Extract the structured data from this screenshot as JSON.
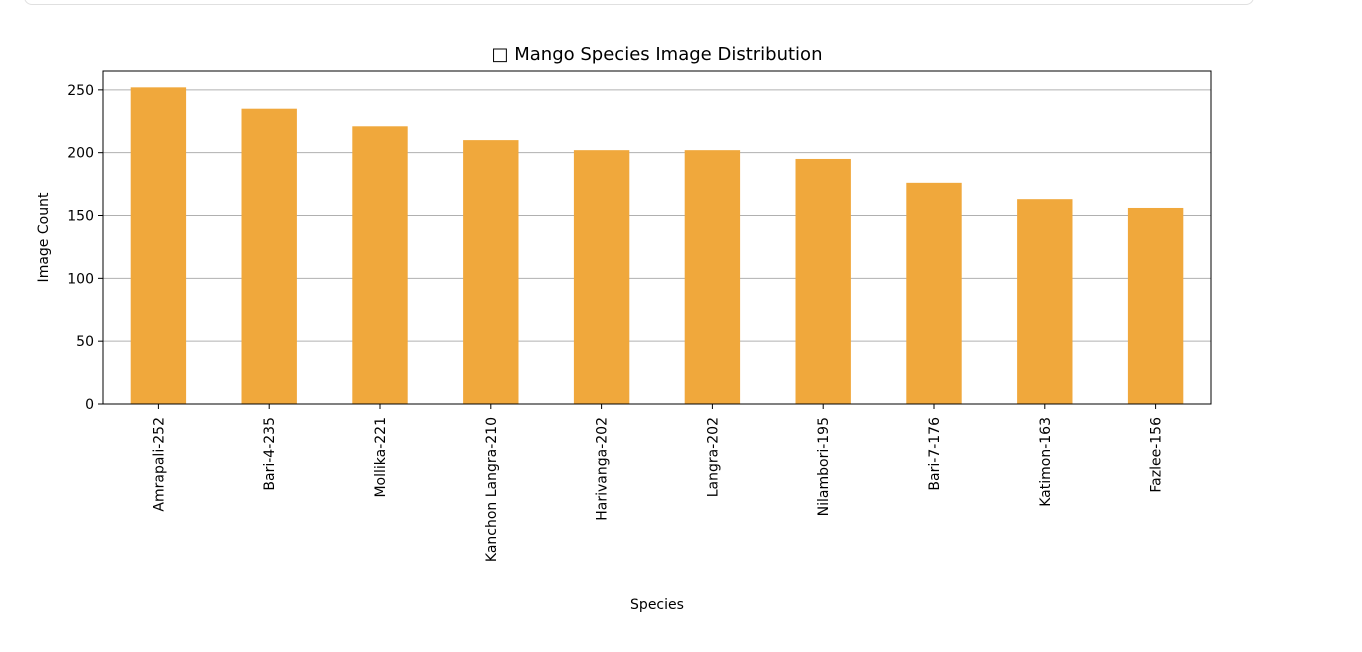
{
  "chart_data": {
    "type": "bar",
    "title": "□ Mango Species Image Distribution",
    "xlabel": "Species",
    "ylabel": "Image Count",
    "categories": [
      "Amrapali-252",
      "Bari-4-235",
      "Mollika-221",
      "Kanchon Langra-210",
      "Harivanga-202",
      "Langra-202",
      "Nilambori-195",
      "Bari-7-176",
      "Katimon-163",
      "Fazlee-156"
    ],
    "values": [
      252,
      235,
      221,
      210,
      202,
      202,
      195,
      176,
      163,
      156
    ],
    "ylim": [
      0,
      265
    ],
    "yticks": [
      0,
      50,
      100,
      150,
      200,
      250
    ],
    "grid": "horizontal",
    "bar_color": "#f0a83c",
    "legend": "none"
  }
}
